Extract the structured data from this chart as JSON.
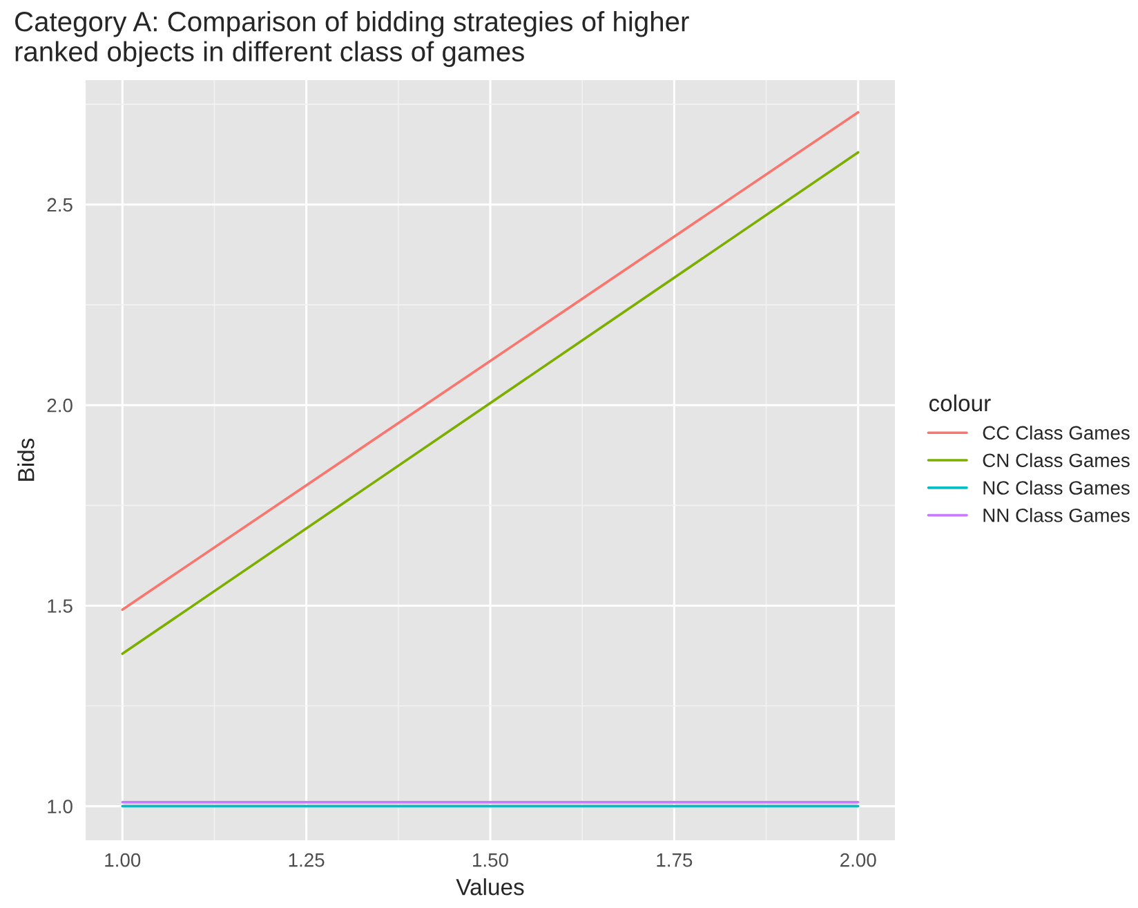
{
  "chart_data": {
    "type": "line",
    "title": "Category A: Comparison of bidding strategies of higher\nranked objects in different class of games",
    "xlabel": "Values",
    "ylabel": "Bids",
    "legend_title": "colour",
    "x": [
      1.0,
      2.0
    ],
    "series": [
      {
        "name": "CC Class Games",
        "color": "#f8766d",
        "values": [
          1.49,
          2.73
        ]
      },
      {
        "name": "CN Class Games",
        "color": "#7cae00",
        "values": [
          1.38,
          2.63
        ]
      },
      {
        "name": "NC Class Games",
        "color": "#00bfc4",
        "values": [
          1.0,
          1.0
        ]
      },
      {
        "name": "NN Class Games",
        "color": "#c77cff",
        "values": [
          1.01,
          1.01
        ]
      }
    ],
    "xlim": [
      0.95,
      2.05
    ],
    "ylim": [
      0.915,
      2.81
    ],
    "xticks": [
      {
        "value": 1.0,
        "label": "1.00"
      },
      {
        "value": 1.25,
        "label": "1.25"
      },
      {
        "value": 1.5,
        "label": "1.50"
      },
      {
        "value": 1.75,
        "label": "1.75"
      },
      {
        "value": 2.0,
        "label": "2.00"
      }
    ],
    "yticks": [
      {
        "value": 1.0,
        "label": "1.0"
      },
      {
        "value": 1.5,
        "label": "1.5"
      },
      {
        "value": 2.0,
        "label": "2.0"
      },
      {
        "value": 2.5,
        "label": "2.5"
      }
    ],
    "grid": true,
    "legend": "right",
    "marker": "none",
    "line_style": "solid"
  }
}
